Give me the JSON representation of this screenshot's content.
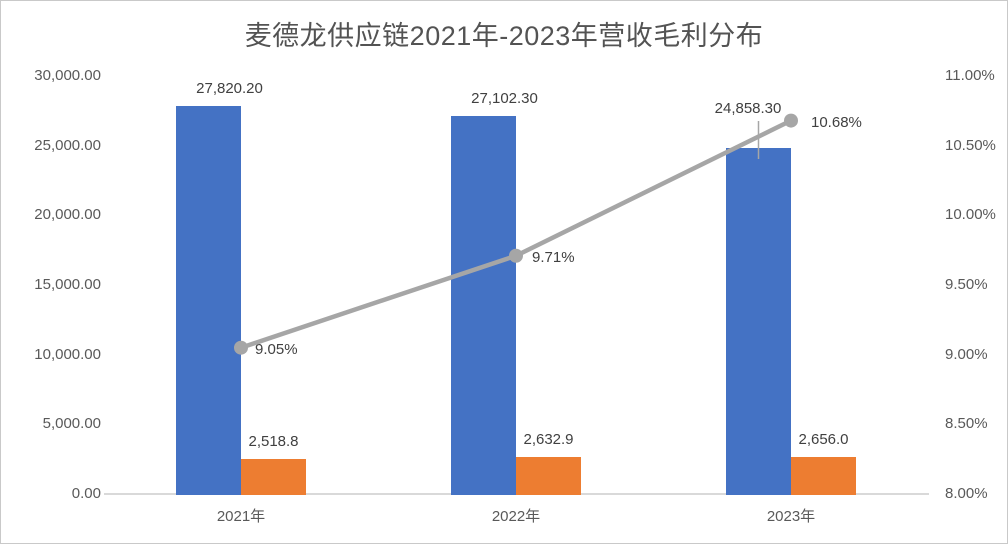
{
  "chart_data": {
    "type": "combo-bar-line",
    "title": "麦德龙供应链2021年-2023年营收毛利分布",
    "categories": [
      "2021年",
      "2022年",
      "2023年"
    ],
    "series": [
      {
        "id": "revenue",
        "type": "bar",
        "axis": "left",
        "color": "#4472C4",
        "values": [
          27820.2,
          27102.3,
          24858.3
        ],
        "labels": [
          "27,820.20",
          "27,102.30",
          "24,858.30"
        ]
      },
      {
        "id": "gross-profit",
        "type": "bar",
        "axis": "left",
        "color": "#ED7D31",
        "values": [
          2518.8,
          2632.9,
          2656.0
        ],
        "labels": [
          "2,518.8",
          "2,632.9",
          "2,656.0"
        ]
      },
      {
        "id": "gross-margin",
        "type": "line",
        "axis": "right",
        "color": "#A6A6A6",
        "values": [
          9.05,
          9.71,
          10.68
        ],
        "labels": [
          "9.05%",
          "9.71%",
          "10.68%"
        ]
      }
    ],
    "left_axis": {
      "min": 0,
      "max": 30000,
      "step": 5000,
      "ticks": [
        "0.00",
        "5,000.00",
        "10,000.00",
        "15,000.00",
        "20,000.00",
        "25,000.00",
        "30,000.00"
      ]
    },
    "right_axis": {
      "min": 8,
      "max": 11,
      "step": 0.5,
      "ticks": [
        "8.00%",
        "8.50%",
        "9.00%",
        "9.50%",
        "10.00%",
        "10.50%",
        "11.00%"
      ]
    },
    "grid": false,
    "legend": "none"
  },
  "colors": {
    "axis_line": "#D9D9D9",
    "axis_text": "#595959",
    "data_label_text": "#404040",
    "title_text": "#535353",
    "frame_border": "#C9C9C9"
  }
}
